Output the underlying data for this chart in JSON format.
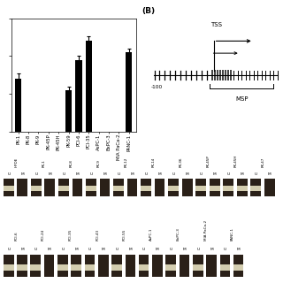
{
  "panel_label": "(B)",
  "bar_categories": [
    "PK-1",
    "PK-8",
    "PK-9",
    "PK-45P",
    "PK-45H",
    "PK-59",
    "PCI-6",
    "PCI-35",
    "AsPC-1",
    "BxPC-3",
    "MIA PaCa-2",
    "PANC-1"
  ],
  "bar_values": [
    0.28,
    0.0,
    0.0,
    0.0,
    0.0,
    0.22,
    0.38,
    0.48,
    0.0,
    0.0,
    0.0,
    0.42
  ],
  "bar_errors": [
    0.03,
    0.0,
    0.0,
    0.0,
    0.0,
    0.02,
    0.02,
    0.025,
    0.0,
    0.0,
    0.0,
    0.02
  ],
  "ylim": [
    0,
    0.6
  ],
  "bar_color": "#000000",
  "gel_row1_labels": [
    "HPDE",
    "PK-1",
    "PK-8",
    "PK-9",
    "PK-12",
    "PK-14",
    "PK-36",
    "PK-45P",
    "PK-45H",
    "PK-47"
  ],
  "gel_row2_labels": [
    "PCI-6",
    "PCI-24",
    "PCI-35",
    "PCI-43",
    "PCI-55",
    "AsPC-1",
    "BxPC-3",
    "MIA PaCa-2",
    "PANC-1"
  ],
  "gel_row1_u_bands": [
    true,
    true,
    true,
    true,
    true,
    true,
    true,
    true,
    true,
    true
  ],
  "gel_row1_m_bands": [
    false,
    false,
    false,
    false,
    false,
    false,
    false,
    true,
    true,
    false
  ],
  "gel_row2_u_bands": [
    true,
    true,
    true,
    true,
    true,
    true,
    true,
    true,
    true
  ],
  "gel_row2_m_bands": [
    true,
    false,
    true,
    false,
    false,
    false,
    false,
    false,
    true
  ],
  "tss_label": "TSS",
  "msp_label": "MSP",
  "pos_label": "-100",
  "bg_color": "#ffffff",
  "text_color": "#000000",
  "gel_dark": "#4a4030",
  "gel_band_bright": "#e8e0c0",
  "gel_lane_bg": "#2a2018"
}
